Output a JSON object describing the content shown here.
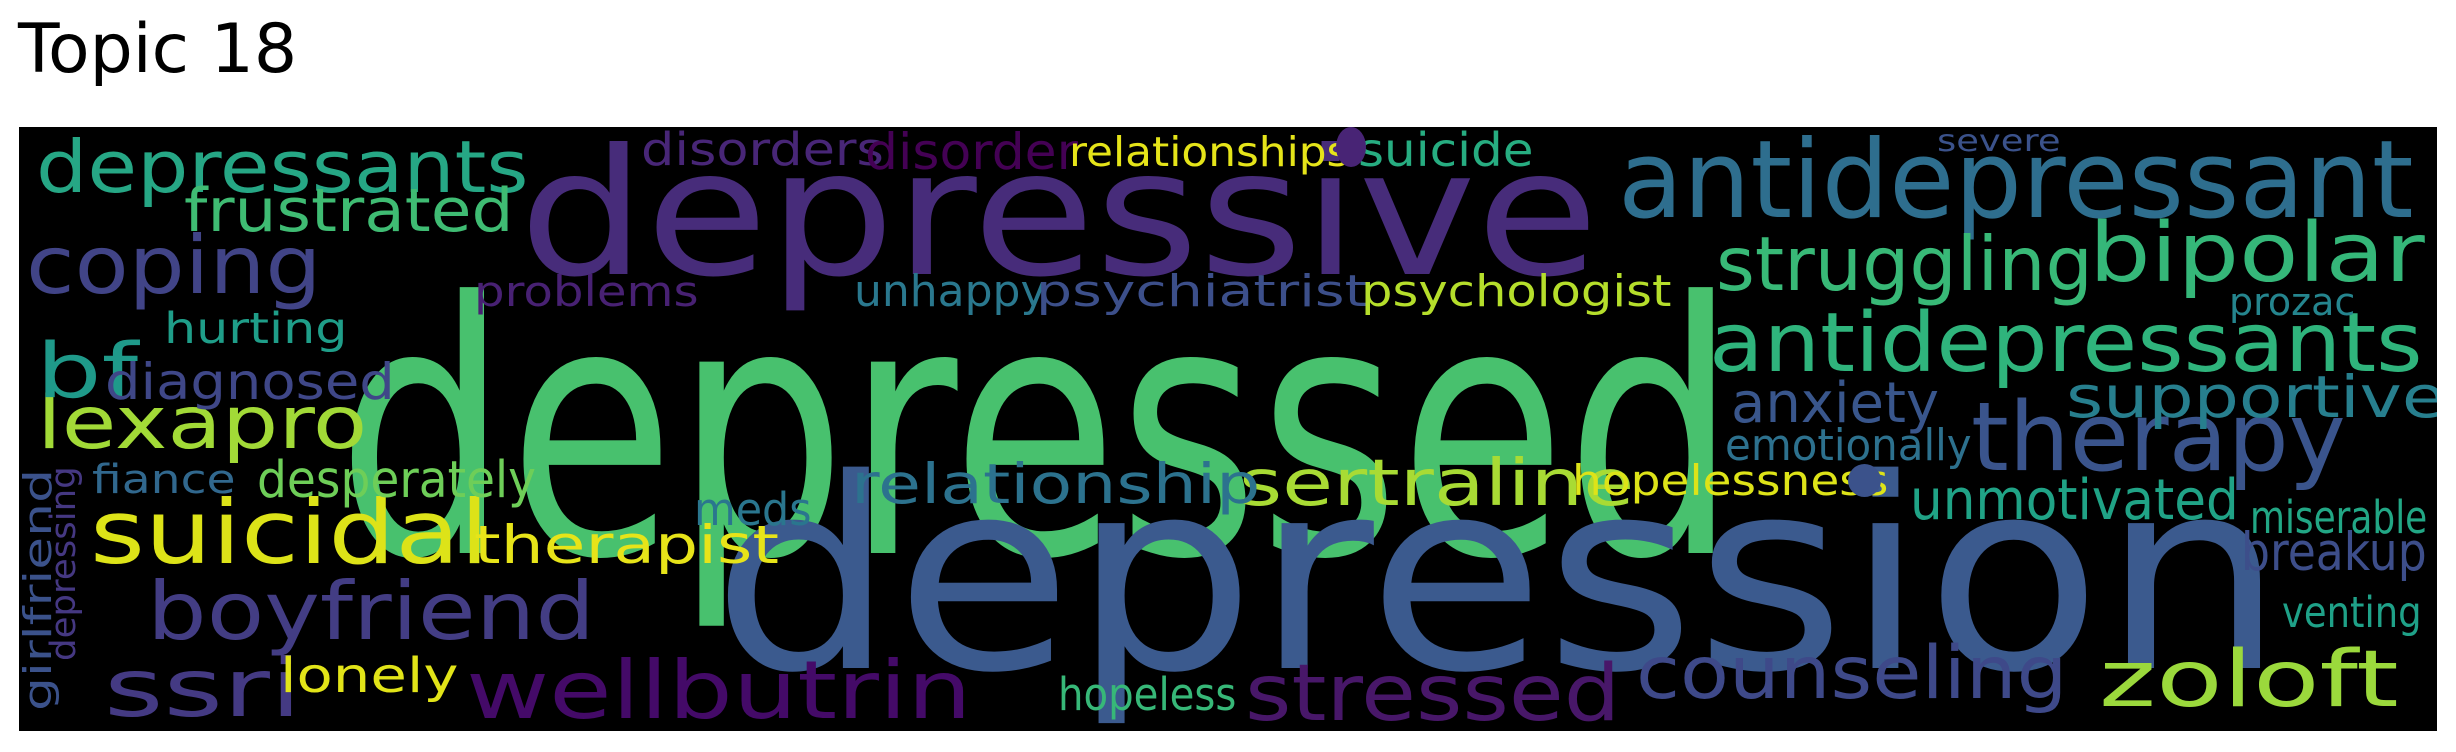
{
  "title": "Topic 18",
  "words": [
    {
      "text": "depressed",
      "color": "#48c16e"
    },
    {
      "text": "depression",
      "color": "#3b5a8e"
    },
    {
      "text": "depressive",
      "color": "#472c7a"
    },
    {
      "text": "antidepressant",
      "color": "#2e6e8e"
    },
    {
      "text": "depressants",
      "color": "#26a785"
    },
    {
      "text": "antidepressants",
      "color": "#2fb47c"
    },
    {
      "text": "bipolar",
      "color": "#35b779"
    },
    {
      "text": "struggling",
      "color": "#38b977"
    },
    {
      "text": "coping",
      "color": "#414487"
    },
    {
      "text": "frustrated",
      "color": "#3fbc73"
    },
    {
      "text": "therapy",
      "color": "#3a548c"
    },
    {
      "text": "suicidal",
      "color": "#dde318"
    },
    {
      "text": "lexapro",
      "color": "#a2da37"
    },
    {
      "text": "boyfriend",
      "color": "#433d84"
    },
    {
      "text": "ssri",
      "color": "#443a83"
    },
    {
      "text": "wellbutrin",
      "color": "#440a68"
    },
    {
      "text": "stressed",
      "color": "#481769"
    },
    {
      "text": "counseling",
      "color": "#3e4989"
    },
    {
      "text": "zoloft",
      "color": "#9bd93c"
    },
    {
      "text": "sertraline",
      "color": "#a8db34"
    },
    {
      "text": "relationship",
      "color": "#2c728e"
    },
    {
      "text": "supportive",
      "color": "#277f8e"
    },
    {
      "text": "unhappy",
      "color": "#2a788e"
    },
    {
      "text": "psychiatrist",
      "color": "#3c4f8a"
    },
    {
      "text": "psychologist",
      "color": "#b5de2b"
    },
    {
      "text": "problems",
      "color": "#482173"
    },
    {
      "text": "disorders",
      "color": "#482677"
    },
    {
      "text": "disorder",
      "color": "#440154"
    },
    {
      "text": "relationships",
      "color": "#e5e419"
    },
    {
      "text": "suicide",
      "color": "#27ad81"
    },
    {
      "text": "severe",
      "color": "#3b528b"
    },
    {
      "text": "prozac",
      "color": "#25858e"
    },
    {
      "text": "hurting",
      "color": "#1f9e89"
    },
    {
      "text": "bf",
      "color": "#1f9a8a"
    },
    {
      "text": "diagnosed",
      "color": "#3f4788"
    },
    {
      "text": "anxiety",
      "color": "#39568c"
    },
    {
      "text": "emotionally",
      "color": "#2d718e"
    },
    {
      "text": "therapist",
      "color": "#e7e419"
    },
    {
      "text": "desperately",
      "color": "#6ece58"
    },
    {
      "text": "fiance",
      "color": "#31688e"
    },
    {
      "text": "meds",
      "color": "#2a768e"
    },
    {
      "text": "hopelessness",
      "color": "#dde318"
    },
    {
      "text": "unmotivated",
      "color": "#20a386"
    },
    {
      "text": "miserable",
      "color": "#22a785"
    },
    {
      "text": "breakup",
      "color": "#3d4e8a"
    },
    {
      "text": "venting",
      "color": "#1fa188"
    },
    {
      "text": "lonely",
      "color": "#e2e418"
    },
    {
      "text": "hopeless",
      "color": "#37b878"
    },
    {
      "text": "girlfriend",
      "color": "#3b528b"
    },
    {
      "text": "depressing",
      "color": "#453882"
    }
  ],
  "dots": [
    {
      "color": "#482475"
    },
    {
      "color": "#3b528b"
    }
  ]
}
